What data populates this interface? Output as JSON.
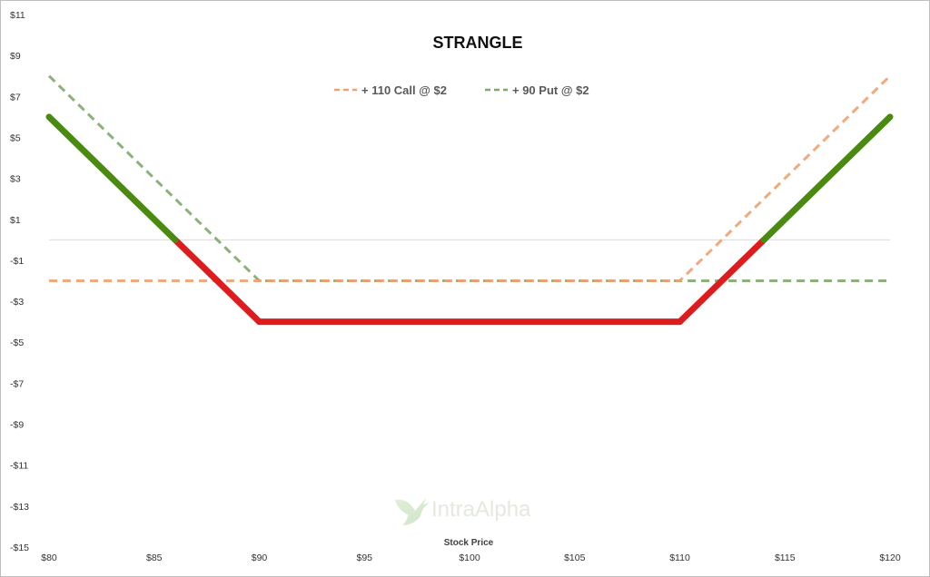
{
  "chart_data": {
    "type": "line",
    "title": "STRANGLE",
    "xlabel": "Stock Price",
    "ylabel": "",
    "x": [
      80,
      85,
      90,
      95,
      100,
      105,
      110,
      115,
      120
    ],
    "x_tick_labels": [
      "$80",
      "$85",
      "$90",
      "$95",
      "$100",
      "$105",
      "$110",
      "$115",
      "$120"
    ],
    "xlim": [
      80,
      120
    ],
    "ylim": [
      -15,
      11
    ],
    "y_ticks": [
      11,
      9,
      7,
      5,
      3,
      1,
      -1,
      -3,
      -5,
      -7,
      -9,
      -11,
      -13,
      -15
    ],
    "y_tick_labels": [
      "$11",
      "$9",
      "$7",
      "$5",
      "$3",
      "$1",
      "-$1",
      "-$3",
      "-$5",
      "-$7",
      "-$9",
      "-$11",
      "-$13",
      "-$15"
    ],
    "zero_line": 0,
    "grid": false,
    "legend_position": "top-center",
    "series": [
      {
        "name": "+ 110 Call @ $2",
        "style": "dashed",
        "color": "#f0a070",
        "points": [
          [
            80,
            -2
          ],
          [
            110,
            -2
          ],
          [
            120,
            8
          ]
        ]
      },
      {
        "name": "+ 90 Put @ $2",
        "style": "dashed",
        "color": "#7fa86a",
        "points": [
          [
            80,
            8
          ],
          [
            90,
            -2
          ],
          [
            120,
            -2
          ]
        ]
      },
      {
        "name": "",
        "style": "solid-thick",
        "profit_color": "#4a8a10",
        "loss_color": "#dd1d1d",
        "points": [
          [
            80,
            6
          ],
          [
            90,
            -4
          ],
          [
            110,
            -4
          ],
          [
            120,
            6
          ]
        ]
      }
    ]
  },
  "watermark": {
    "text": "IntraAlpha",
    "icon": "hummingbird-logo-icon"
  }
}
